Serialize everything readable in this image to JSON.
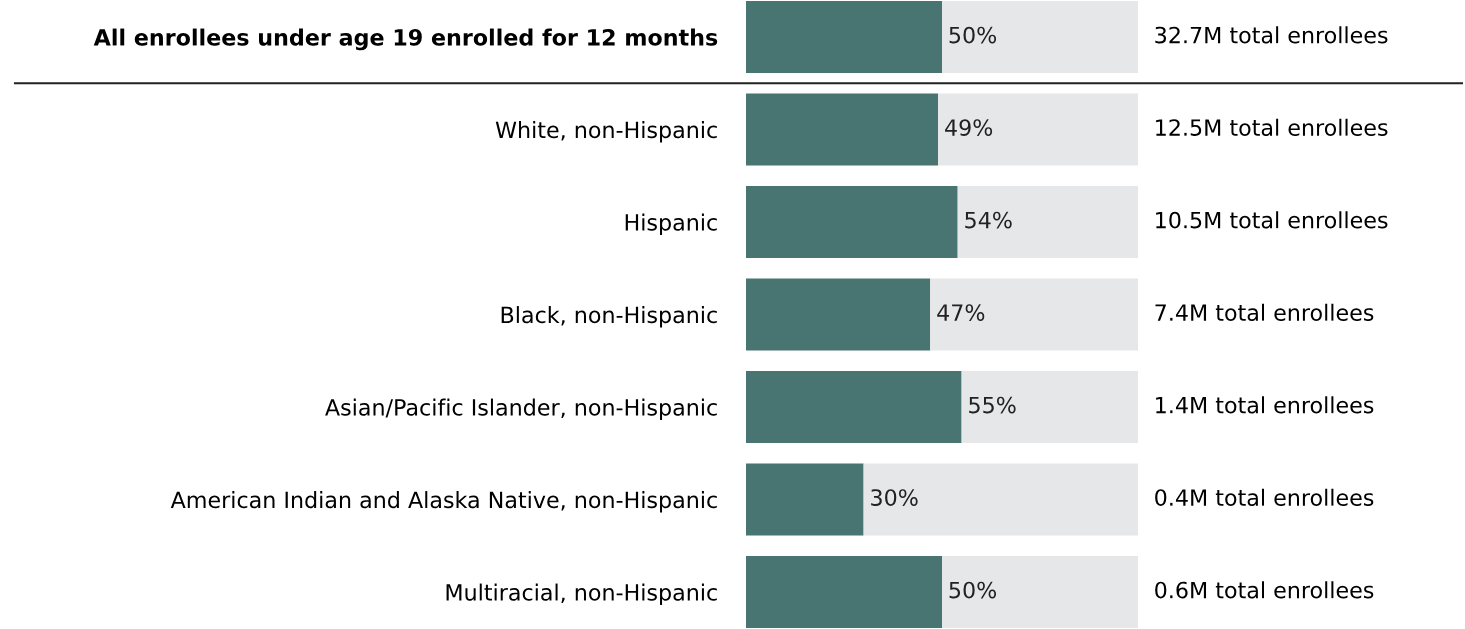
{
  "chart_data": {
    "type": "bar",
    "orientation": "horizontal",
    "stacked": true,
    "categories": [
      "All enrollees under age 19 enrolled for 12 months",
      "White, non-Hispanic",
      "Hispanic",
      "Black, non-Hispanic",
      "Asian/Pacific Islander, non-Hispanic",
      "American Indian and Alaska Native, non-Hispanic",
      "Multiracial, non-Hispanic"
    ],
    "series": [
      {
        "color": "#487571",
        "values": [
          50,
          49,
          54,
          47,
          55,
          30,
          50
        ],
        "value_labels": [
          "50%",
          "49%",
          "54%",
          "47%",
          "55%",
          "30%",
          "50%"
        ]
      },
      {
        "color": "#e6e7e8",
        "values": [
          50,
          51,
          46,
          53,
          45,
          70,
          50
        ]
      }
    ],
    "xlim": [
      0,
      100
    ],
    "tick_labels": "y",
    "grid": false,
    "legend": false,
    "annotations": [
      "32.7M total enrollees",
      "12.5M total enrollees",
      "10.5M total enrollees",
      "7.4M total enrollees",
      "1.4M total enrollees",
      "0.4M total enrollees",
      "0.6M total enrollees"
    ]
  }
}
